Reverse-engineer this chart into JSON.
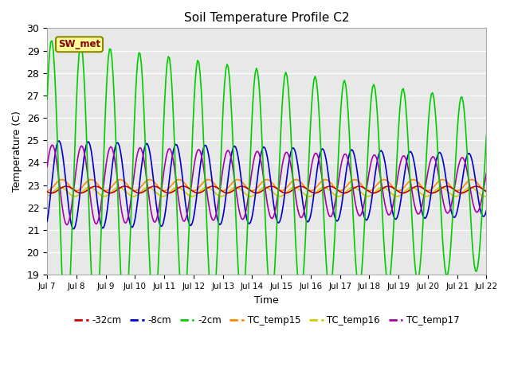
{
  "title": "Soil Temperature Profile C2",
  "xlabel": "Time",
  "ylabel": "Temperature (C)",
  "ylim": [
    19.0,
    30.0
  ],
  "yticks": [
    19.0,
    20.0,
    21.0,
    22.0,
    23.0,
    24.0,
    25.0,
    26.0,
    27.0,
    28.0,
    29.0,
    30.0
  ],
  "xtick_labels": [
    "Jul 7",
    "Jul 8",
    "Jul 9",
    "Jul 10",
    "Jul 11",
    "Jul 12",
    "Jul 13",
    "Jul 14",
    "Jul 15",
    "Jul 16",
    "Jul 17",
    "Jul 18",
    "Jul 19",
    "Jul 20",
    "Jul 21",
    "Jul 22"
  ],
  "series": {
    "-32cm": {
      "color": "#cc0000",
      "linewidth": 1.2
    },
    "-8cm": {
      "color": "#0000cc",
      "linewidth": 1.2
    },
    "-2cm": {
      "color": "#00cc00",
      "linewidth": 1.2
    },
    "TC_temp15": {
      "color": "#ff8800",
      "linewidth": 1.2
    },
    "TC_temp16": {
      "color": "#cccc00",
      "linewidth": 1.2
    },
    "TC_temp17": {
      "color": "#aa00aa",
      "linewidth": 1.2
    }
  },
  "sw_met_label": "SW_met",
  "sw_met_bg": "#ffff99",
  "sw_met_border": "#888800",
  "sw_met_text_color": "#880000",
  "fig_bg": "#ffffff",
  "plot_bg": "#e8e8e8"
}
